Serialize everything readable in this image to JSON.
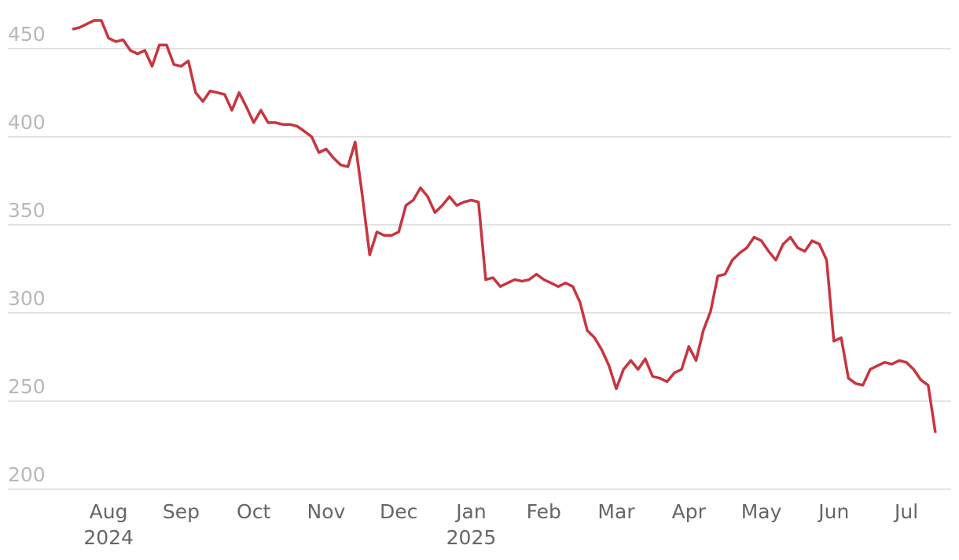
{
  "chart_data": {
    "type": "line",
    "categories": [
      null,
      null,
      null,
      null,
      null,
      "Aug 2024",
      null,
      null,
      null,
      null,
      null,
      null,
      null,
      null,
      null,
      "Sep",
      null,
      null,
      null,
      null,
      null,
      null,
      null,
      null,
      null,
      "Oct",
      null,
      null,
      null,
      null,
      null,
      null,
      null,
      null,
      null,
      "Nov",
      null,
      null,
      null,
      null,
      null,
      null,
      null,
      null,
      null,
      "Dec",
      null,
      null,
      null,
      null,
      null,
      null,
      null,
      null,
      null,
      "Jan 2025",
      null,
      null,
      null,
      null,
      null,
      null,
      null,
      null,
      null,
      "Feb",
      null,
      null,
      null,
      null,
      null,
      null,
      null,
      null,
      null,
      "Mar",
      null,
      null,
      null,
      null,
      null,
      null,
      null,
      null,
      null,
      "Apr",
      null,
      null,
      null,
      null,
      null,
      null,
      null,
      null,
      null,
      "May",
      null,
      null,
      null,
      null,
      null,
      null,
      null,
      null,
      null,
      "Jun",
      null,
      null,
      null,
      null,
      null,
      null,
      null,
      null,
      null,
      "Jul",
      null,
      null,
      null,
      null
    ],
    "values": [
      461,
      462,
      464,
      466,
      466,
      456,
      454,
      455,
      449,
      447,
      449,
      440,
      452,
      452,
      441,
      440,
      443,
      425,
      420,
      426,
      425,
      424,
      415,
      425,
      417,
      408,
      415,
      408,
      408,
      407,
      407,
      406,
      403,
      400,
      391,
      393,
      388,
      384,
      383,
      397,
      366,
      333,
      346,
      344,
      344,
      346,
      361,
      364,
      371,
      366,
      357,
      361,
      366,
      361,
      363,
      364,
      363,
      319,
      320,
      315,
      317,
      319,
      318,
      319,
      322,
      319,
      317,
      315,
      317,
      315,
      306,
      290,
      286,
      279,
      270,
      257,
      268,
      273,
      268,
      274,
      264,
      263,
      261,
      266,
      268,
      281,
      273,
      290,
      301,
      321,
      322,
      330,
      334,
      337,
      343,
      341,
      335,
      330,
      339,
      343,
      337,
      335,
      341,
      339,
      330,
      284,
      286,
      263,
      260,
      259,
      268,
      270,
      272,
      271,
      273,
      272,
      268,
      262,
      259,
      232
    ],
    "color": "#c8353f",
    "ylim": [
      200,
      470
    ],
    "yticks": [
      200,
      250,
      300,
      350,
      400,
      450
    ],
    "grid": true
  }
}
